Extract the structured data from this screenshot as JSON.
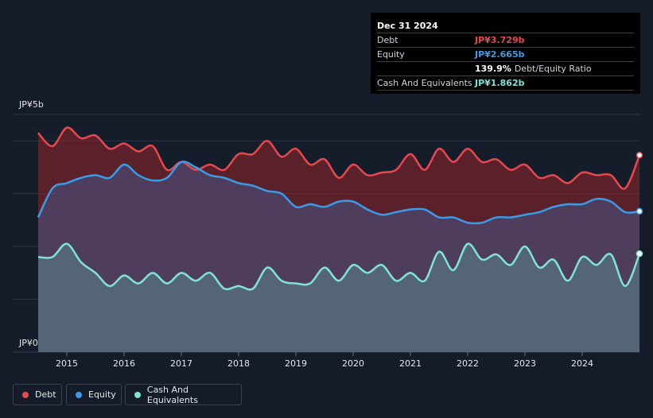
{
  "tooltip": {
    "date": "Dec 31 2024",
    "rows": [
      {
        "label": "Debt",
        "value": "JP¥3.729b",
        "color": "#e5484d"
      },
      {
        "label": "Equity",
        "value": "JP¥2.665b",
        "color": "#3b9be8"
      },
      {
        "label": "",
        "value": "139.9%",
        "suffix": "Debt/Equity Ratio",
        "color": "#ffffff"
      },
      {
        "label": "Cash And Equivalents",
        "value": "JP¥1.862b",
        "color": "#7fe3d5"
      }
    ]
  },
  "legend": [
    {
      "label": "Debt",
      "color": "#e5484d"
    },
    {
      "label": "Equity",
      "color": "#3b9be8"
    },
    {
      "label": "Cash And Equivalents",
      "color": "#7fe3d5"
    }
  ],
  "chart_data": {
    "type": "area",
    "ytick_labels": [
      "JP¥5b",
      "JP¥0"
    ],
    "ylim": [
      0,
      4.5
    ],
    "xlim": [
      2014.5,
      2025.0
    ],
    "xticks": [
      2015,
      2016,
      2017,
      2018,
      2019,
      2020,
      2021,
      2022,
      2023,
      2024
    ],
    "grid": true,
    "legend_position": "bottom-left",
    "x": [
      2014.5,
      2014.75,
      2015.0,
      2015.25,
      2015.5,
      2015.75,
      2016.0,
      2016.25,
      2016.5,
      2016.75,
      2017.0,
      2017.25,
      2017.5,
      2017.75,
      2018.0,
      2018.25,
      2018.5,
      2018.75,
      2019.0,
      2019.25,
      2019.5,
      2019.75,
      2020.0,
      2020.25,
      2020.5,
      2020.75,
      2021.0,
      2021.25,
      2021.5,
      2021.75,
      2022.0,
      2022.25,
      2022.5,
      2022.75,
      2023.0,
      2023.25,
      2023.5,
      2023.75,
      2024.0,
      2024.25,
      2024.5,
      2024.75,
      2025.0
    ],
    "series": [
      {
        "name": "Debt",
        "color": "#e5484d",
        "values": [
          4.15,
          3.9,
          4.25,
          4.05,
          4.1,
          3.85,
          3.95,
          3.8,
          3.9,
          3.45,
          3.6,
          3.45,
          3.55,
          3.45,
          3.75,
          3.75,
          4.0,
          3.7,
          3.85,
          3.55,
          3.65,
          3.3,
          3.55,
          3.35,
          3.4,
          3.45,
          3.75,
          3.45,
          3.85,
          3.6,
          3.85,
          3.6,
          3.65,
          3.45,
          3.55,
          3.3,
          3.35,
          3.2,
          3.4,
          3.35,
          3.35,
          3.1,
          3.729
        ]
      },
      {
        "name": "Equity",
        "color": "#3b9be8",
        "values": [
          2.55,
          3.1,
          3.2,
          3.3,
          3.35,
          3.3,
          3.55,
          3.35,
          3.25,
          3.3,
          3.6,
          3.5,
          3.35,
          3.3,
          3.2,
          3.15,
          3.05,
          3.0,
          2.75,
          2.8,
          2.75,
          2.85,
          2.85,
          2.7,
          2.6,
          2.65,
          2.7,
          2.7,
          2.55,
          2.55,
          2.45,
          2.45,
          2.55,
          2.55,
          2.6,
          2.65,
          2.75,
          2.8,
          2.8,
          2.9,
          2.85,
          2.65,
          2.665
        ]
      },
      {
        "name": "Cash And Equivalents",
        "color": "#7fe3d5",
        "values": [
          1.8,
          1.8,
          2.05,
          1.7,
          1.5,
          1.25,
          1.45,
          1.3,
          1.5,
          1.3,
          1.5,
          1.35,
          1.5,
          1.2,
          1.25,
          1.2,
          1.6,
          1.35,
          1.3,
          1.3,
          1.6,
          1.35,
          1.65,
          1.5,
          1.65,
          1.35,
          1.5,
          1.35,
          1.9,
          1.55,
          2.05,
          1.75,
          1.85,
          1.65,
          2.0,
          1.6,
          1.75,
          1.35,
          1.8,
          1.65,
          1.85,
          1.25,
          1.862
        ]
      }
    ]
  }
}
